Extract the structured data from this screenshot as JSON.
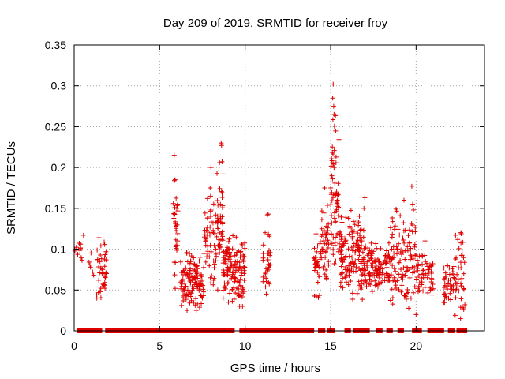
{
  "chart_data": {
    "type": "scatter",
    "title": "Day 209 of 2019, SRMTID for receiver froy",
    "xlabel": "GPS time / hours",
    "ylabel": "SRMTID / TECUs",
    "xlim": [
      0,
      24
    ],
    "ylim": [
      0,
      0.35
    ],
    "x_ticks": [
      0,
      5,
      10,
      15,
      20
    ],
    "y_ticks": [
      0,
      0.05,
      0.1,
      0.15,
      0.2,
      0.25,
      0.3,
      0.35
    ],
    "x_tick_labels": [
      "0",
      "5",
      "10",
      "15",
      "20"
    ],
    "y_tick_labels": [
      "0",
      "0.05",
      "0.1",
      "0.15",
      "0.2",
      "0.25",
      "0.3",
      "0.35"
    ],
    "grid": true,
    "marker": "+",
    "color": "#e00000",
    "clusters": [
      {
        "x0": 0.0,
        "x1": 0.6,
        "ymin": 0.08,
        "ymax": 0.13,
        "n": 12
      },
      {
        "x0": 0.8,
        "x1": 1.2,
        "ymin": 0.06,
        "ymax": 0.1,
        "n": 6
      },
      {
        "x0": 1.3,
        "x1": 1.9,
        "ymin": 0.04,
        "ymax": 0.13,
        "n": 45
      },
      {
        "x0": 5.8,
        "x1": 6.1,
        "ymin": 0.05,
        "ymax": 0.21,
        "n": 30
      },
      {
        "x0": 6.2,
        "x1": 7.6,
        "ymin": 0.025,
        "ymax": 0.11,
        "n": 130
      },
      {
        "x0": 7.6,
        "x1": 8.3,
        "ymin": 0.04,
        "ymax": 0.2,
        "n": 50
      },
      {
        "x0": 8.3,
        "x1": 8.7,
        "ymin": 0.05,
        "ymax": 0.23,
        "n": 45
      },
      {
        "x0": 8.7,
        "x1": 9.3,
        "ymin": 0.035,
        "ymax": 0.14,
        "n": 70
      },
      {
        "x0": 9.3,
        "x1": 10.0,
        "ymin": 0.03,
        "ymax": 0.13,
        "n": 75
      },
      {
        "x0": 11.0,
        "x1": 11.5,
        "ymin": 0.035,
        "ymax": 0.145,
        "n": 30
      },
      {
        "x0": 14.0,
        "x1": 14.4,
        "ymin": 0.04,
        "ymax": 0.14,
        "n": 35
      },
      {
        "x0": 14.4,
        "x1": 14.9,
        "ymin": 0.06,
        "ymax": 0.17,
        "n": 45
      },
      {
        "x0": 15.0,
        "x1": 15.5,
        "ymin": 0.05,
        "ymax": 0.3,
        "n": 60
      },
      {
        "x0": 15.5,
        "x1": 17.0,
        "ymin": 0.035,
        "ymax": 0.16,
        "n": 150
      },
      {
        "x0": 17.0,
        "x1": 18.5,
        "ymin": 0.04,
        "ymax": 0.125,
        "n": 120
      },
      {
        "x0": 18.5,
        "x1": 20.0,
        "ymin": 0.02,
        "ymax": 0.175,
        "n": 110
      },
      {
        "x0": 20.0,
        "x1": 21.0,
        "ymin": 0.03,
        "ymax": 0.12,
        "n": 60
      },
      {
        "x0": 21.6,
        "x1": 22.2,
        "ymin": 0.03,
        "ymax": 0.1,
        "n": 40
      },
      {
        "x0": 22.2,
        "x1": 22.9,
        "ymin": 0.015,
        "ymax": 0.14,
        "n": 45
      }
    ],
    "peaks": [
      {
        "x": 5.85,
        "y": 0.215
      },
      {
        "x": 5.9,
        "y": 0.185
      },
      {
        "x": 6.0,
        "y": 0.15
      },
      {
        "x": 8.0,
        "y": 0.2
      },
      {
        "x": 8.6,
        "y": 0.23
      },
      {
        "x": 8.62,
        "y": 0.227
      },
      {
        "x": 8.65,
        "y": 0.207
      },
      {
        "x": 8.7,
        "y": 0.192
      },
      {
        "x": 8.55,
        "y": 0.155
      },
      {
        "x": 7.95,
        "y": 0.175
      },
      {
        "x": 7.98,
        "y": 0.165
      },
      {
        "x": 15.15,
        "y": 0.302
      },
      {
        "x": 15.12,
        "y": 0.285
      },
      {
        "x": 15.18,
        "y": 0.275
      },
      {
        "x": 15.2,
        "y": 0.265
      },
      {
        "x": 15.1,
        "y": 0.225
      },
      {
        "x": 15.15,
        "y": 0.204
      },
      {
        "x": 15.2,
        "y": 0.2
      },
      {
        "x": 15.4,
        "y": 0.16
      },
      {
        "x": 15.35,
        "y": 0.17
      },
      {
        "x": 14.65,
        "y": 0.175
      },
      {
        "x": 17.0,
        "y": 0.163
      },
      {
        "x": 16.95,
        "y": 0.15
      },
      {
        "x": 19.75,
        "y": 0.177
      },
      {
        "x": 19.8,
        "y": 0.155
      },
      {
        "x": 19.85,
        "y": 0.148
      },
      {
        "x": 11.3,
        "y": 0.142
      },
      {
        "x": 11.35,
        "y": 0.143
      },
      {
        "x": 22.6,
        "y": 0.015
      },
      {
        "x": 20.0,
        "y": 0.02
      },
      {
        "x": 6.6,
        "y": 0.025
      }
    ],
    "zero_segments": [
      [
        0.3,
        0.45
      ],
      [
        0.6,
        0.75
      ],
      [
        0.9,
        1.25
      ],
      [
        1.35,
        1.5
      ],
      [
        1.95,
        5.8
      ],
      [
        6.0,
        6.35
      ],
      [
        6.6,
        6.8
      ],
      [
        7.05,
        7.2
      ],
      [
        7.4,
        7.55
      ],
      [
        7.75,
        7.85
      ],
      [
        8.05,
        8.2
      ],
      [
        8.35,
        8.55
      ],
      [
        8.8,
        8.95
      ],
      [
        9.1,
        9.25
      ],
      [
        9.8,
        10.0
      ],
      [
        10.0,
        10.8
      ],
      [
        10.9,
        11.1
      ],
      [
        11.3,
        13.9
      ],
      [
        14.4,
        14.55
      ],
      [
        14.95,
        15.1
      ],
      [
        15.95,
        16.05
      ],
      [
        16.45,
        16.6
      ],
      [
        16.85,
        16.95
      ],
      [
        17.05,
        17.15
      ],
      [
        17.8,
        17.9
      ],
      [
        18.4,
        18.5
      ],
      [
        19.05,
        19.15
      ],
      [
        19.9,
        20.2
      ],
      [
        20.8,
        21.5
      ],
      [
        22.0,
        22.15
      ],
      [
        22.5,
        22.65
      ],
      [
        22.75,
        22.85
      ]
    ]
  }
}
